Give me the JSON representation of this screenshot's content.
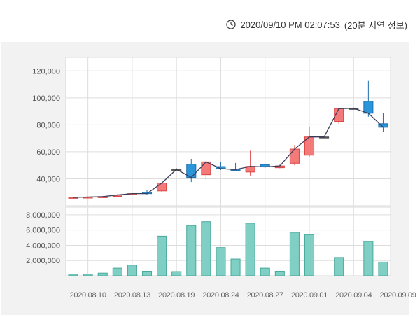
{
  "header": {
    "timestamp": "2020/09/10 PM 02:07:53",
    "delay_note": "(20분 지연 정보)",
    "icon": "clock-icon"
  },
  "chart_data": {
    "type": "candlestick+bar",
    "colors": {
      "up_fill": "#f47a7a",
      "up_border": "#d94646",
      "down_fill": "#2b95d9",
      "down_border": "#1f6fb0",
      "flat": "#555555",
      "line": "#3d3d5a",
      "volume_fill": "#7fcfc4",
      "volume_border": "#4aa89b",
      "grid": "#dddddd"
    },
    "price_axis": {
      "ylim": [
        20000,
        130000
      ],
      "ticks": [
        40000,
        60000,
        80000,
        100000,
        120000
      ],
      "tick_labels": [
        "40,000",
        "60,000",
        "80,000",
        "100,000",
        "120,000"
      ]
    },
    "volume_axis": {
      "ylim": [
        0,
        9000000
      ],
      "ticks": [
        2000000,
        4000000,
        6000000,
        8000000
      ],
      "tick_labels": [
        "2,000,000",
        "4,000,000",
        "6,000,000",
        "8,000,000"
      ]
    },
    "x_tick_labels": [
      {
        "index": 1,
        "label": "2020.08.10"
      },
      {
        "index": 4,
        "label": "2020.08.13"
      },
      {
        "index": 7,
        "label": "2020.08.19"
      },
      {
        "index": 10,
        "label": "2020.08.24"
      },
      {
        "index": 13,
        "label": "2020.08.27"
      },
      {
        "index": 16,
        "label": "2020.09.01"
      },
      {
        "index": 19,
        "label": "2020.09.04"
      },
      {
        "index": 22,
        "label": "2020.09.09"
      }
    ],
    "candles": [
      {
        "open": 26200,
        "high": 26700,
        "low": 25800,
        "close": 26300,
        "volume": 200000
      },
      {
        "open": 26300,
        "high": 26900,
        "low": 26100,
        "close": 26500,
        "volume": 200000
      },
      {
        "open": 26500,
        "high": 27200,
        "low": 26200,
        "close": 26800,
        "volume": 350000
      },
      {
        "open": 27000,
        "high": 28600,
        "low": 26800,
        "close": 28000,
        "volume": 1000000
      },
      {
        "open": 28700,
        "high": 29400,
        "low": 28200,
        "close": 29000,
        "volume": 1400000
      },
      {
        "open": 30000,
        "high": 31500,
        "low": 28300,
        "close": 29000,
        "volume": 600000
      },
      {
        "open": 31000,
        "high": 37300,
        "low": 30500,
        "close": 36800,
        "volume": 5200000
      },
      {
        "open": 47000,
        "high": 47800,
        "low": 46400,
        "close": 47000,
        "volume": 550000
      },
      {
        "open": 50800,
        "high": 54800,
        "low": 37600,
        "close": 41000,
        "volume": 6600000
      },
      {
        "open": 43000,
        "high": 53300,
        "low": 39500,
        "close": 52500,
        "volume": 7100000
      },
      {
        "open": 49000,
        "high": 52500,
        "low": 46500,
        "close": 47500,
        "volume": 3700000
      },
      {
        "open": 47000,
        "high": 51700,
        "low": 46300,
        "close": 46800,
        "volume": 2200000
      },
      {
        "open": 45000,
        "high": 60800,
        "low": 42400,
        "close": 49200,
        "volume": 6900000
      },
      {
        "open": 50500,
        "high": 51300,
        "low": 48000,
        "close": 48800,
        "volume": 1000000
      },
      {
        "open": 48200,
        "high": 50500,
        "low": 47800,
        "close": 49500,
        "volume": 600000
      },
      {
        "open": 51500,
        "high": 65000,
        "low": 50000,
        "close": 62000,
        "volume": 5700000
      },
      {
        "open": 57500,
        "high": 78500,
        "low": 56500,
        "close": 71000,
        "volume": 5400000
      },
      {
        "open": 71000,
        "high": 71600,
        "low": 70400,
        "close": 71000,
        "volume": 0
      },
      {
        "open": 82500,
        "high": 92500,
        "low": 80800,
        "close": 92000,
        "volume": 2400000
      },
      {
        "open": 92200,
        "high": 92800,
        "low": 91400,
        "close": 92200,
        "volume": 0
      },
      {
        "open": 97500,
        "high": 112500,
        "low": 86000,
        "close": 88600,
        "volume": 4500000
      },
      {
        "open": 80800,
        "high": 88700,
        "low": 74600,
        "close": 78200,
        "volume": 1800000
      }
    ],
    "trend_line": [
      26200,
      26500,
      26800,
      28000,
      29000,
      29000,
      36800,
      47000,
      41000,
      52500,
      47500,
      46800,
      49200,
      48800,
      49500,
      62000,
      71000,
      71000,
      92000,
      92200,
      88600,
      78200
    ]
  }
}
